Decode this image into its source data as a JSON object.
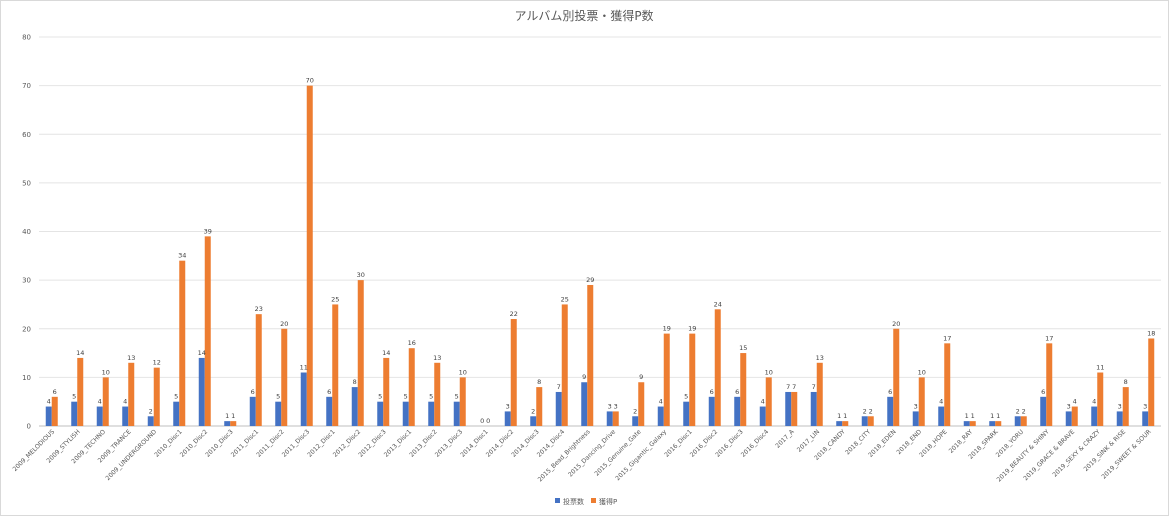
{
  "chart_data": {
    "type": "bar",
    "title": "アルバム別投票・獲得P数",
    "xlabel": "",
    "ylabel": "",
    "ylim": [
      0,
      80
    ],
    "yticks": [
      0,
      10,
      20,
      30,
      40,
      50,
      60,
      70,
      80
    ],
    "grid": true,
    "legend_position": "bottom",
    "colors": {
      "votes": "#4472c4",
      "points": "#ed7d31"
    },
    "categories": [
      "2009_MELODIOUS",
      "2009_STYLISH",
      "2009_TECHNO",
      "2009_TRANCE",
      "2009_UNDERGROUND",
      "2010_Disc1",
      "2010_Disc2",
      "2010_Disc3",
      "2011_Disc1",
      "2011_Disc2",
      "2011_Disc3",
      "2012_Disc1",
      "2012_Disc2",
      "2012_Disc3",
      "2013_Disc1",
      "2013_Disc2",
      "2013_Disc3",
      "2014_Disc1",
      "2014_Disc2",
      "2014_Disc3",
      "2014_Disc4",
      "2015_Bead_Brightness",
      "2015_Dancing_Drive",
      "2015_Genuine_Gate",
      "2015_Gigantic_Galaxy",
      "2016_Disc1",
      "2016_Disc2",
      "2016_Disc3",
      "2016_Disc4",
      "2017_A",
      "2017_LIN",
      "2018_CANDY",
      "2018_CITY",
      "2018_EDEN",
      "2018_END",
      "2018_HOPE",
      "2018_RAY",
      "2018_SPARK",
      "2018_YORU",
      "2019_BEAUTY & SHINY",
      "2019_GRACE & BRAVE",
      "2019_SEXY & CRAZY",
      "2019_SINK & RISE",
      "2019_SWEET & SOUR"
    ],
    "series": [
      {
        "name": "投票数",
        "values": [
          4,
          5,
          4,
          4,
          2,
          5,
          14,
          1,
          6,
          5,
          11,
          6,
          8,
          5,
          5,
          5,
          5,
          0,
          3,
          2,
          7,
          9,
          3,
          2,
          4,
          5,
          6,
          6,
          4,
          7,
          7,
          1,
          2,
          6,
          3,
          4,
          1,
          1,
          2,
          6,
          3,
          4,
          3,
          3
        ]
      },
      {
        "name": "獲得P",
        "values": [
          6,
          14,
          10,
          13,
          12,
          34,
          39,
          1,
          23,
          20,
          70,
          25,
          30,
          14,
          16,
          13,
          10,
          0,
          22,
          8,
          25,
          29,
          3,
          9,
          19,
          19,
          24,
          15,
          10,
          7,
          13,
          1,
          2,
          20,
          10,
          17,
          1,
          1,
          2,
          17,
          4,
          11,
          8,
          18
        ]
      }
    ]
  }
}
